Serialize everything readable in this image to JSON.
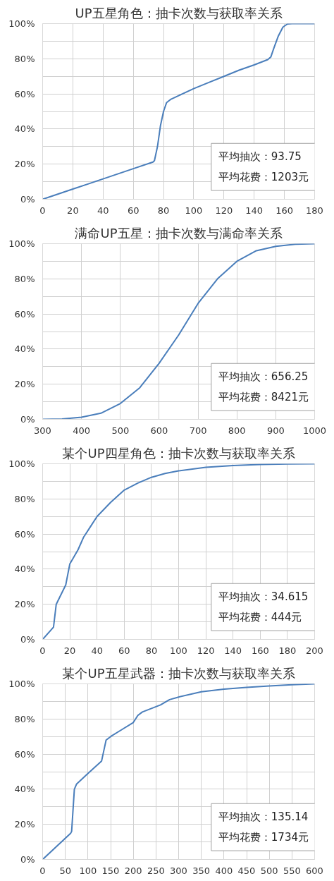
{
  "chart_data": [
    {
      "type": "line",
      "title": "UP五星角色：抽卡次数与获取率关系",
      "color": "#4a7ebb",
      "grid": true,
      "xlim": [
        0,
        180
      ],
      "xticks": [
        0,
        20,
        40,
        60,
        80,
        100,
        120,
        140,
        160,
        180
      ],
      "ylim": [
        0,
        100
      ],
      "yticks": [
        {
          "value": 0,
          "label": "0%"
        },
        {
          "value": 10,
          "label": null
        },
        {
          "value": 20,
          "label": "20%"
        },
        {
          "value": 30,
          "label": null
        },
        {
          "value": 40,
          "label": "40%"
        },
        {
          "value": 50,
          "label": null
        },
        {
          "value": 60,
          "label": "60%"
        },
        {
          "value": 70,
          "label": null
        },
        {
          "value": 80,
          "label": "80%"
        },
        {
          "value": 90,
          "label": null
        },
        {
          "value": 100,
          "label": "100%"
        }
      ],
      "x": [
        0,
        10,
        20,
        30,
        40,
        50,
        60,
        73,
        74,
        76,
        78,
        80,
        82,
        85,
        90,
        100,
        110,
        120,
        130,
        140,
        149,
        151,
        153,
        156,
        159,
        162,
        165,
        180
      ],
      "values": [
        0,
        2.9,
        5.8,
        8.7,
        11.6,
        14.5,
        17.4,
        21.2,
        22,
        30,
        42,
        50,
        55,
        57,
        59,
        63,
        66.5,
        70,
        73.5,
        76.5,
        79.5,
        81,
        86,
        93,
        98,
        99.8,
        100,
        100
      ],
      "annotations": [
        "平均抽次：93.75",
        "平均花费：1203元"
      ]
    },
    {
      "type": "line",
      "title": "满命UP五星：抽卡次数与满命率关系",
      "color": "#4a7ebb",
      "grid": true,
      "xlim": [
        300,
        1000
      ],
      "xticks": [
        300,
        400,
        500,
        600,
        700,
        800,
        900,
        1000
      ],
      "ylim": [
        0,
        100
      ],
      "yticks": [
        {
          "value": 0,
          "label": "0%"
        },
        {
          "value": 10,
          "label": null
        },
        {
          "value": 20,
          "label": "20%"
        },
        {
          "value": 30,
          "label": null
        },
        {
          "value": 40,
          "label": "40%"
        },
        {
          "value": 50,
          "label": null
        },
        {
          "value": 60,
          "label": "60%"
        },
        {
          "value": 70,
          "label": null
        },
        {
          "value": 80,
          "label": "80%"
        },
        {
          "value": 90,
          "label": null
        },
        {
          "value": 100,
          "label": "100%"
        }
      ],
      "x": [
        300,
        350,
        400,
        450,
        500,
        550,
        600,
        650,
        700,
        750,
        800,
        850,
        900,
        950,
        1000
      ],
      "values": [
        0,
        0.2,
        1.2,
        3.5,
        9,
        18,
        32,
        48,
        66,
        80,
        90,
        96,
        98.5,
        99.7,
        100
      ],
      "annotations": [
        "平均抽次：656.25",
        "平均花费：8421元"
      ]
    },
    {
      "type": "line",
      "title": "某个UP四星角色：抽卡次数与获取率关系",
      "color": "#4a7ebb",
      "grid": true,
      "xlim": [
        0,
        200
      ],
      "xticks": [
        0,
        20,
        40,
        60,
        80,
        100,
        120,
        140,
        160,
        180,
        200
      ],
      "ylim": [
        0,
        100
      ],
      "yticks": [
        {
          "value": 0,
          "label": "0%"
        },
        {
          "value": 10,
          "label": null
        },
        {
          "value": 20,
          "label": "20%"
        },
        {
          "value": 30,
          "label": null
        },
        {
          "value": 40,
          "label": "40%"
        },
        {
          "value": 50,
          "label": null
        },
        {
          "value": 60,
          "label": "60%"
        },
        {
          "value": 70,
          "label": null
        },
        {
          "value": 80,
          "label": "80%"
        },
        {
          "value": 90,
          "label": null
        },
        {
          "value": 100,
          "label": "100%"
        }
      ],
      "x": [
        0,
        8,
        10,
        17,
        20,
        26,
        30,
        35,
        40,
        45,
        50,
        60,
        70,
        80,
        90,
        100,
        120,
        140,
        160,
        180,
        200
      ],
      "values": [
        0,
        7,
        20,
        31,
        43,
        51,
        58,
        64,
        70,
        74,
        78,
        85,
        89,
        92.3,
        94.5,
        96,
        98,
        99,
        99.6,
        99.9,
        100
      ],
      "annotations": [
        "平均抽次：34.615",
        "平均花费：444元"
      ]
    },
    {
      "type": "line",
      "title": "某个UP五星武器：抽卡次数与获取率关系",
      "color": "#4a7ebb",
      "grid": true,
      "xlim": [
        0,
        600
      ],
      "xticks": [
        0,
        50,
        100,
        150,
        200,
        250,
        300,
        350,
        400,
        450,
        500,
        550,
        600
      ],
      "ylim": [
        0,
        100
      ],
      "yticks": [
        {
          "value": 0,
          "label": "0%"
        },
        {
          "value": 10,
          "label": null
        },
        {
          "value": 20,
          "label": "20%"
        },
        {
          "value": 30,
          "label": null
        },
        {
          "value": 40,
          "label": "40%"
        },
        {
          "value": 50,
          "label": null
        },
        {
          "value": 60,
          "label": "60%"
        },
        {
          "value": 70,
          "label": null
        },
        {
          "value": 80,
          "label": "80%"
        },
        {
          "value": 90,
          "label": null
        },
        {
          "value": 100,
          "label": "100%"
        }
      ],
      "x": [
        0,
        62,
        64,
        70,
        75,
        100,
        130,
        135,
        140,
        150,
        175,
        200,
        210,
        220,
        260,
        280,
        300,
        350,
        400,
        450,
        500,
        550,
        600
      ],
      "values": [
        0,
        15,
        16,
        40,
        43,
        49,
        56,
        62,
        68,
        70,
        74,
        78,
        82,
        84,
        88,
        91,
        92.5,
        95.5,
        97,
        98,
        98.8,
        99.5,
        100
      ],
      "annotations": [
        "平均抽次：135.14",
        "平均花费：1734元"
      ]
    }
  ]
}
